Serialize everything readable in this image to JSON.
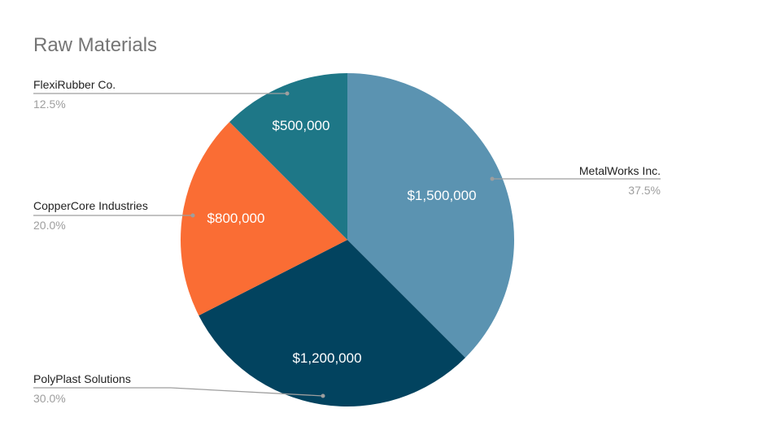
{
  "title": "Raw Materials",
  "chart_data": {
    "type": "pie",
    "title": "Raw Materials",
    "slices": [
      {
        "label": "MetalWorks Inc.",
        "value": 1500000,
        "value_label": "$1,500,000",
        "percent_label": "37.5%",
        "color": "#5b93b1"
      },
      {
        "label": "PolyPlast Solutions",
        "value": 1200000,
        "value_label": "$1,200,000",
        "percent_label": "30.0%",
        "color": "#02435f"
      },
      {
        "label": "CopperCore Industries",
        "value": 800000,
        "value_label": "$800,000",
        "percent_label": "20.0%",
        "color": "#fa6d34"
      },
      {
        "label": "FlexiRubber Co.",
        "value": 500000,
        "value_label": "$500,000",
        "percent_label": "12.5%",
        "color": "#1e7787"
      }
    ],
    "legend_placement": "outside-labels",
    "leader_line_color": "#9e9e9e"
  }
}
